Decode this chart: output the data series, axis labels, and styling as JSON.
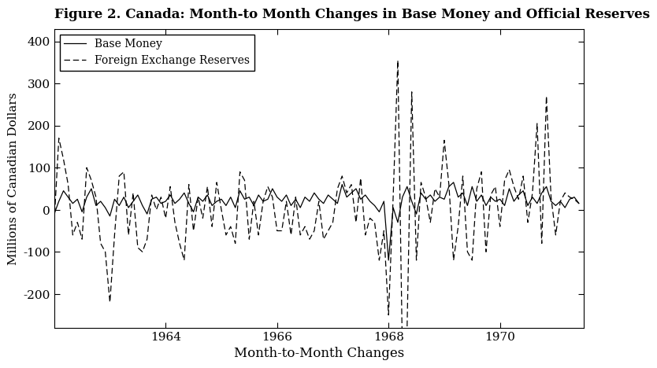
{
  "title": "Figure 2. Canada: Month-to Month Changes in Base Money and Official Reserves",
  "xlabel": "Month-to-Month Changes",
  "ylabel": "Millions of Canadian Dollars",
  "ylim": [
    -280,
    430
  ],
  "yticks": [
    -200,
    -100,
    0,
    100,
    200,
    300,
    400
  ],
  "xlim": [
    1962.0,
    1971.5
  ],
  "xticks": [
    1964,
    1966,
    1968,
    1970
  ],
  "legend_labels": [
    "Base Money",
    "Foreign Exchange Reserves"
  ],
  "line_color": "#000000",
  "background_color": "#ffffff",
  "base_money": [
    -10,
    20,
    45,
    30,
    15,
    25,
    -5,
    30,
    50,
    10,
    20,
    5,
    -15,
    25,
    10,
    30,
    5,
    20,
    35,
    10,
    -10,
    25,
    30,
    15,
    20,
    35,
    15,
    25,
    40,
    15,
    -5,
    30,
    20,
    35,
    10,
    20,
    25,
    10,
    30,
    5,
    45,
    25,
    30,
    10,
    35,
    20,
    25,
    50,
    30,
    20,
    35,
    10,
    25,
    5,
    30,
    20,
    40,
    25,
    15,
    35,
    25,
    15,
    60,
    30,
    40,
    50,
    25,
    35,
    20,
    10,
    -5,
    20,
    -120,
    5,
    -30,
    30,
    55,
    20,
    -10,
    40,
    25,
    35,
    20,
    30,
    25,
    55,
    65,
    30,
    40,
    10,
    55,
    20,
    35,
    10,
    30,
    20,
    25,
    10,
    50,
    20,
    35,
    45,
    10,
    30,
    15,
    40,
    55,
    20,
    10,
    20,
    5,
    25,
    30,
    15
  ],
  "foreign_reserves": [
    -30,
    170,
    120,
    60,
    -60,
    -30,
    -70,
    100,
    70,
    30,
    -80,
    -100,
    -220,
    -60,
    80,
    90,
    -60,
    40,
    -90,
    -100,
    -70,
    35,
    0,
    30,
    -20,
    55,
    -30,
    -80,
    -120,
    60,
    -50,
    30,
    -20,
    55,
    -40,
    65,
    0,
    -60,
    -40,
    -80,
    90,
    70,
    -70,
    20,
    -60,
    20,
    55,
    30,
    -50,
    -50,
    20,
    -60,
    30,
    -60,
    -40,
    -70,
    -50,
    20,
    -70,
    -50,
    -30,
    50,
    80,
    40,
    60,
    -30,
    75,
    -60,
    -20,
    -30,
    -120,
    -50,
    -250,
    30,
    355,
    -350,
    -280,
    280,
    -120,
    65,
    30,
    -30,
    50,
    30,
    165,
    60,
    -120,
    -40,
    80,
    -100,
    -120,
    50,
    90,
    -100,
    35,
    55,
    -40,
    70,
    95,
    55,
    25,
    80,
    -30,
    40,
    205,
    -80,
    270,
    30,
    -60,
    20,
    40,
    30,
    25,
    15
  ],
  "start_year": 1962.0,
  "months_per_unit": 0.08333
}
